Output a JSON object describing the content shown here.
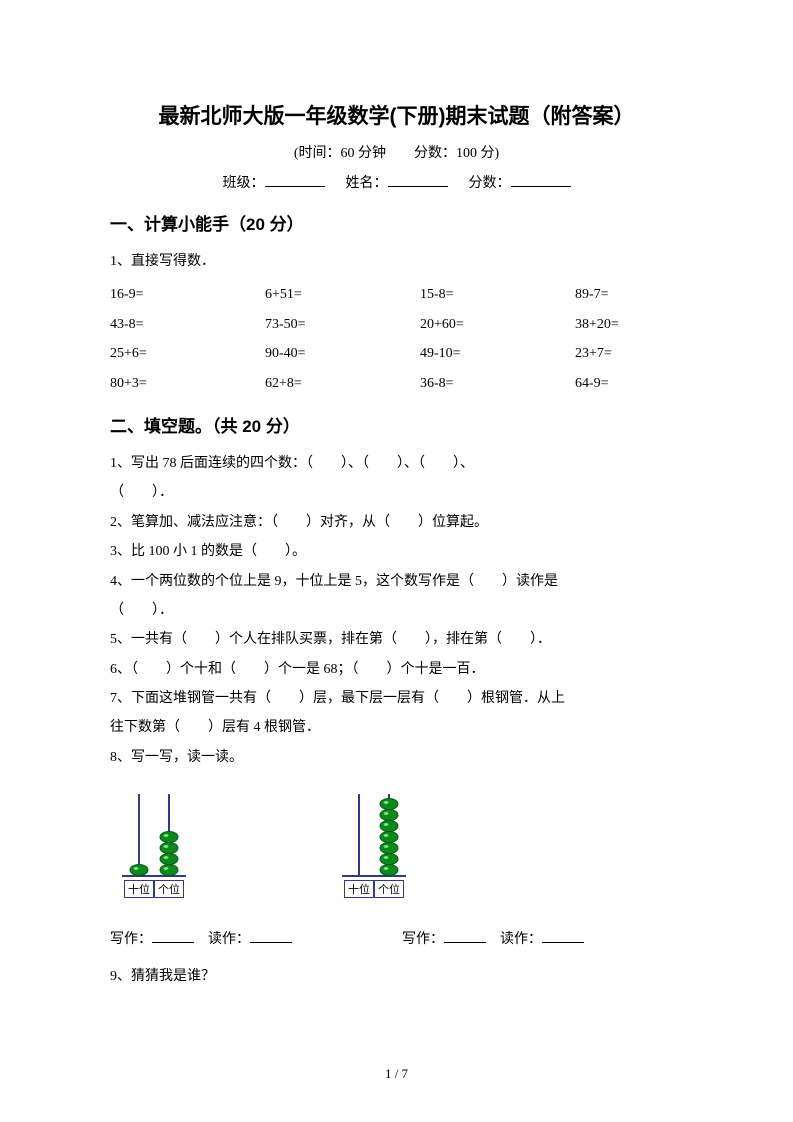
{
  "header": {
    "title": "最新北师大版一年级数学(下册)期末试题（附答案）",
    "subtitle": "(时间：60 分钟　　分数：100 分)",
    "class_label": "班级：",
    "name_label": "姓名：",
    "score_label": "分数："
  },
  "section1": {
    "head": "一、计算小能手（20 分）",
    "q1_label": "1、直接写得数．",
    "grid": [
      [
        "16-9=",
        "6+51=",
        "15-8=",
        "89-7="
      ],
      [
        "43-8=",
        "73-50=",
        "20+60=",
        "38+20="
      ],
      [
        "25+6=",
        "90-40=",
        "49-10=",
        "23+7="
      ],
      [
        "80+3=",
        "62+8=",
        "36-8=",
        "64-9="
      ]
    ]
  },
  "section2": {
    "head": "二、填空题。（共 20 分）",
    "q1a": "1、写出 78 后面连续的四个数：（　　）、（　　）、（　　）、",
    "q1b": "（　　）．",
    "q2": "2、笔算加、减法应注意：（　　）对齐，从（　　）位算起。",
    "q3": "3、比 100 小 1 的数是（　　）。",
    "q4a": "4、一个两位数的个位上是 9，十位上是 5，这个数写作是（　　）读作是",
    "q4b": "（　　）．",
    "q5": "5、一共有（　　）个人在排队买票，排在第（　　），排在第（　　）．",
    "q6": "6、（　　）个十和（　　）个一是 68；（　　）个十是一百．",
    "q7a": "7、下面这堆钢管一共有（　　）层，最下层一层有（　　）根钢管．从上",
    "q7b": "往下数第（　　）层有 4 根钢管．",
    "q8": "8、写一写，读一读。",
    "q9": "9、猜猜我是谁？"
  },
  "abacus": {
    "colors": {
      "rod": "#2f3a82",
      "bead_fill": "#0a8a1a",
      "bead_stroke": "#055c10",
      "frame": "#2f3a82"
    },
    "left_tens_beads": 1,
    "left_ones_beads": 4,
    "right_tens_beads": 0,
    "right_ones_beads": 7,
    "label_tens": "十位",
    "label_ones": "个位"
  },
  "write_read": {
    "write_label": "写作：",
    "read_label": "读作："
  },
  "footer": {
    "page": "1 / 7"
  }
}
